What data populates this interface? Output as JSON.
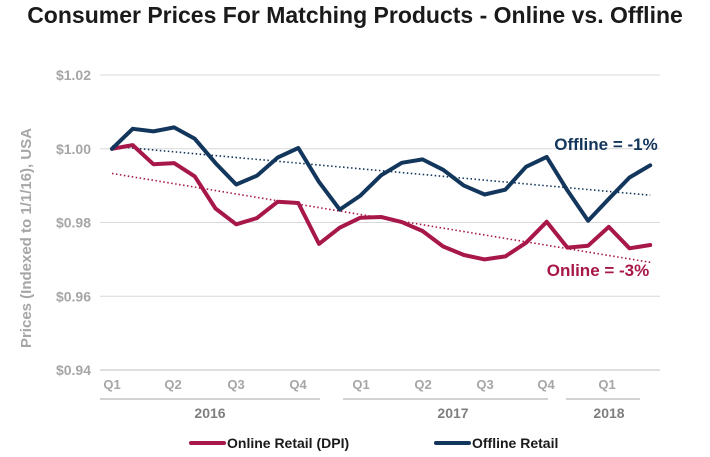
{
  "chart_data": {
    "type": "line",
    "title": "Consumer Prices For Matching Products - Online vs. Offline",
    "xlabel": "",
    "ylabel": "Prices (Indexed to 1/1/16), USA",
    "ylim": [
      0.94,
      1.02
    ],
    "yticks": [
      1.02,
      1.0,
      0.98,
      0.96,
      0.94
    ],
    "ytick_labels": [
      "$1.02",
      "$1.00",
      "$0.98",
      "$0.96",
      "$0.94"
    ],
    "grid": true,
    "legend_position": "bottom",
    "quarter_labels": [
      "Q1",
      "Q2",
      "Q3",
      "Q4",
      "Q1",
      "Q2",
      "Q3",
      "Q4",
      "Q1"
    ],
    "year_labels": [
      "2016",
      "2017",
      "2018"
    ],
    "x": [
      0,
      1,
      2,
      3,
      4,
      5,
      6,
      7,
      8,
      9,
      10,
      11,
      12,
      13,
      14,
      15,
      16,
      17,
      18,
      19,
      20,
      21,
      22,
      23,
      24,
      25,
      26
    ],
    "series": [
      {
        "name": "Online Retail (DPI)",
        "color": "#a8174a",
        "values": [
          1.0,
          1.001,
          0.9958,
          0.9961,
          0.9925,
          0.9838,
          0.9795,
          0.9812,
          0.9856,
          0.9853,
          0.9742,
          0.9786,
          0.9813,
          0.9815,
          0.9801,
          0.9777,
          0.9735,
          0.9712,
          0.97,
          0.9708,
          0.9745,
          0.9802,
          0.9732,
          0.9737,
          0.9788,
          0.973,
          0.9739
        ],
        "trend": [
          0.9933,
          0.9692
        ],
        "annotation": "Online = -3%"
      },
      {
        "name": "Offline Retail",
        "color": "#13365c",
        "values": [
          1.0,
          1.0054,
          1.0047,
          1.0058,
          1.0027,
          0.9961,
          0.9903,
          0.9927,
          0.9976,
          1.0002,
          0.991,
          0.9835,
          0.9873,
          0.9928,
          0.9962,
          0.9971,
          0.9943,
          0.99,
          0.9876,
          0.9889,
          0.9951,
          0.9978,
          0.9887,
          0.9805,
          0.9864,
          0.9922,
          0.9955
        ],
        "trend": [
          1.0007,
          0.9874
        ],
        "annotation": "Offline = -1%"
      }
    ]
  }
}
